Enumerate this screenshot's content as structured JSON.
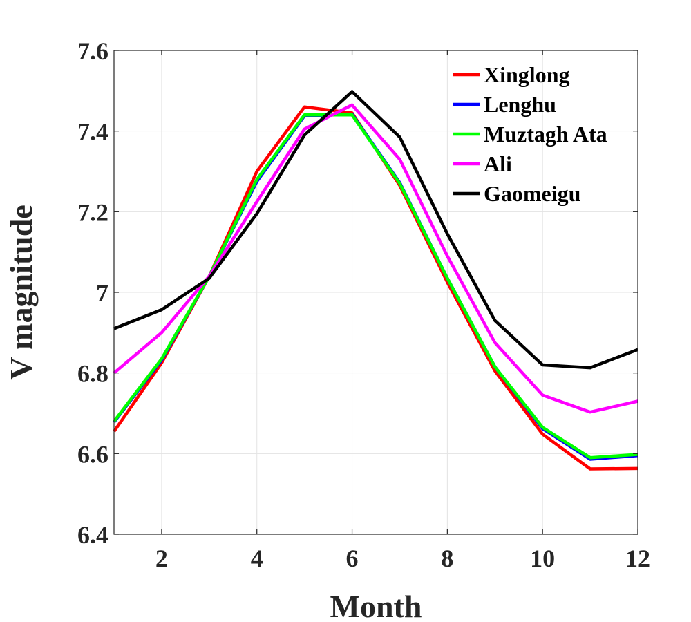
{
  "chart_data": {
    "type": "line",
    "title": "",
    "xlabel": "Month",
    "ylabel": "V magnitude",
    "xlim": [
      1,
      12
    ],
    "ylim": [
      6.4,
      7.6
    ],
    "xticks": [
      2,
      4,
      6,
      8,
      10,
      12
    ],
    "xtick_labels": [
      "2",
      "4",
      "6",
      "8",
      "10",
      "12"
    ],
    "yticks": [
      6.4,
      6.6,
      6.8,
      7.0,
      7.2,
      7.4,
      7.6
    ],
    "ytick_labels": [
      "6.4",
      "6.6",
      "6.8",
      "7",
      "7.2",
      "7.4",
      "7.6"
    ],
    "grid": true,
    "legend_position": "top-right",
    "x": [
      1,
      2,
      3,
      4,
      5,
      6,
      7,
      8,
      9,
      10,
      11,
      12
    ],
    "series": [
      {
        "name": "Xinglong",
        "color": "#ff0000",
        "values": [
          6.655,
          6.825,
          7.04,
          7.3,
          7.46,
          7.445,
          7.265,
          7.025,
          6.805,
          6.648,
          6.562,
          6.563
        ]
      },
      {
        "name": "Lenghu",
        "color": "#0000ff",
        "values": [
          6.678,
          6.832,
          7.04,
          7.275,
          7.438,
          7.442,
          7.272,
          7.035,
          6.815,
          6.662,
          6.586,
          6.595
        ]
      },
      {
        "name": "Muztagh Ata",
        "color": "#00ff00",
        "values": [
          6.68,
          6.835,
          7.04,
          7.28,
          7.44,
          7.44,
          7.27,
          7.035,
          6.815,
          6.665,
          6.59,
          6.598
        ]
      },
      {
        "name": "Ali",
        "color": "#ff00ff",
        "values": [
          6.8,
          6.9,
          7.04,
          7.225,
          7.405,
          7.465,
          7.33,
          7.09,
          6.875,
          6.745,
          6.703,
          6.73
        ]
      },
      {
        "name": "Gaomeigu",
        "color": "#000000",
        "values": [
          6.91,
          6.957,
          7.035,
          7.195,
          7.39,
          7.498,
          7.385,
          7.145,
          6.93,
          6.82,
          6.813,
          6.858
        ]
      }
    ]
  }
}
